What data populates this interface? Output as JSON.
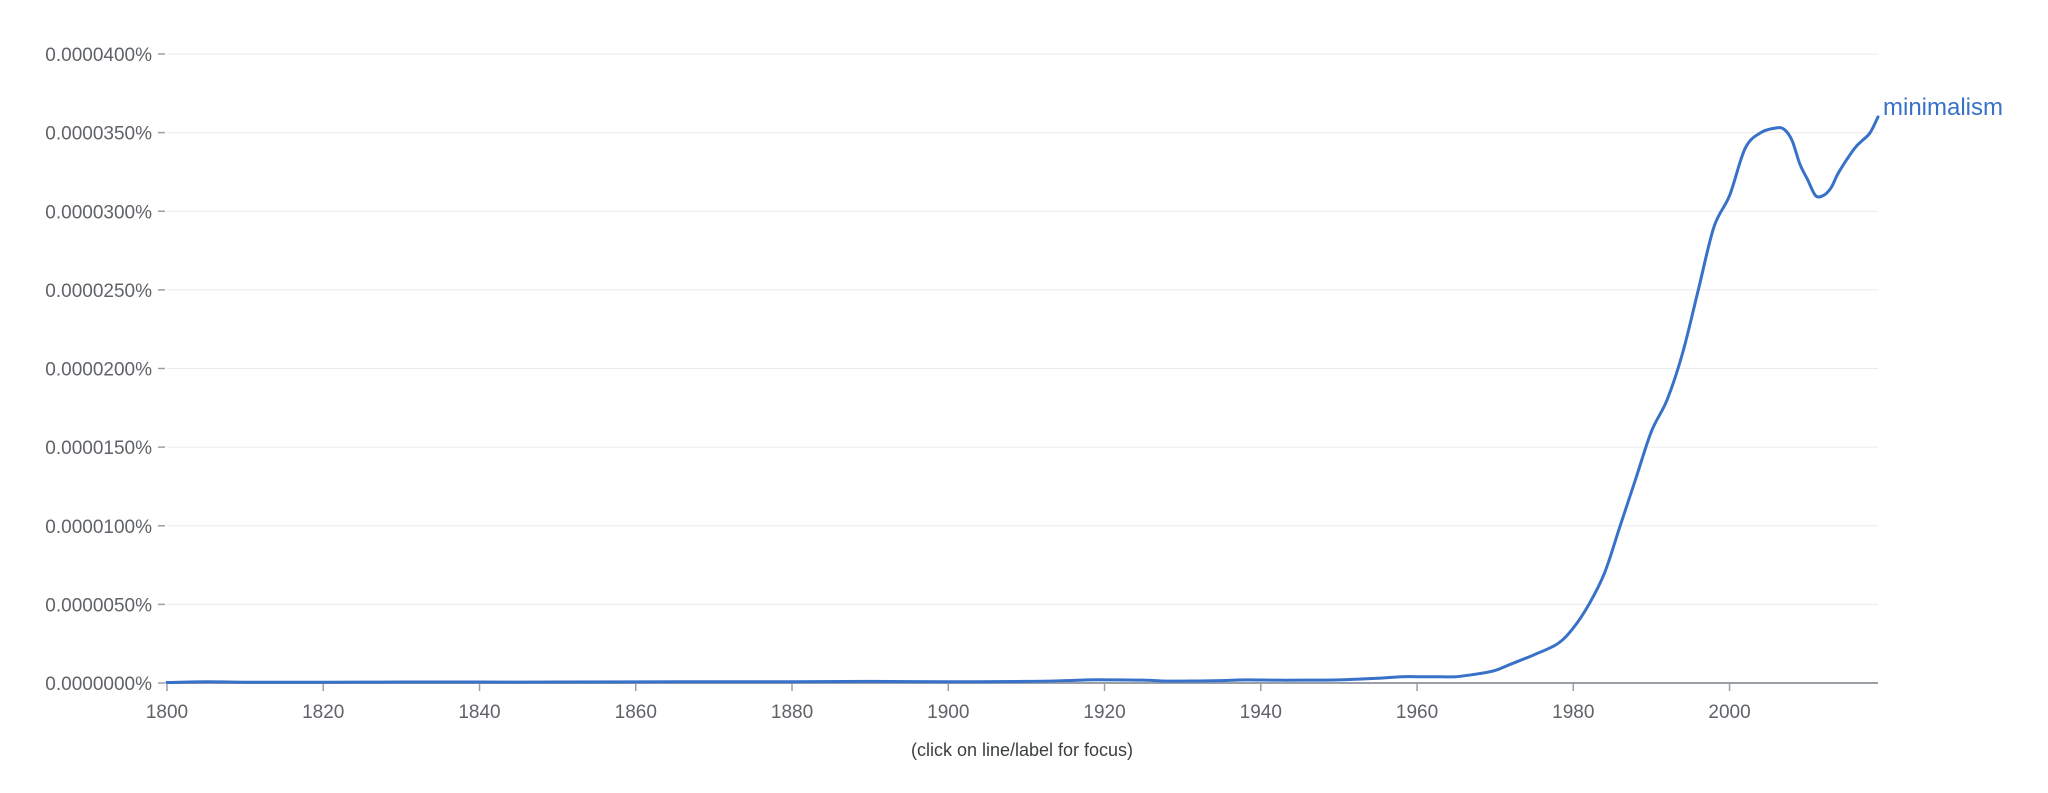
{
  "colors": {
    "series": "#3871c8",
    "grid": "#ebebeb",
    "axis": "#9aa0a6",
    "text": "#5f6368"
  },
  "footnote": "(click on line/label for focus)",
  "chart_data": {
    "type": "line",
    "xlabel": "",
    "ylabel": "",
    "xlim": [
      1800,
      2019
    ],
    "ylim": [
      0,
      4e-07
    ],
    "x_ticks": [
      1800,
      1820,
      1840,
      1860,
      1880,
      1900,
      1920,
      1940,
      1960,
      1980,
      2000
    ],
    "x_tick_labels": [
      "1800",
      "1820",
      "1840",
      "1860",
      "1880",
      "1900",
      "1920",
      "1940",
      "1960",
      "1980",
      "2000"
    ],
    "y_ticks": [
      0,
      5e-08,
      1e-07,
      1.5e-07,
      2e-07,
      2.5e-07,
      3e-07,
      3.5e-07,
      4e-07
    ],
    "y_tick_labels": [
      "0.0000000%",
      "0.0000050%",
      "0.0000100%",
      "0.0000150%",
      "0.0000200%",
      "0.0000250%",
      "0.0000300%",
      "0.0000350%",
      "0.0000400%"
    ],
    "grid": true,
    "legend": "label at line end",
    "series": [
      {
        "name": "minimalism",
        "color": "#3871c8",
        "x": [
          1800,
          1805,
          1810,
          1820,
          1830,
          1840,
          1850,
          1860,
          1870,
          1880,
          1890,
          1900,
          1910,
          1915,
          1918,
          1921,
          1925,
          1928,
          1932,
          1935,
          1938,
          1942,
          1945,
          1950,
          1955,
          1958,
          1960,
          1963,
          1965,
          1968,
          1970,
          1972,
          1975,
          1978,
          1980,
          1982,
          1984,
          1986,
          1988,
          1990,
          1992,
          1994,
          1996,
          1998,
          2000,
          2002,
          2004,
          2006,
          2007,
          2008,
          2009,
          2010,
          2011,
          2012,
          2013,
          2014,
          2016,
          2017,
          2018,
          2019
        ],
        "values": [
          3e-10,
          8e-10,
          5e-10,
          5e-10,
          6e-10,
          6e-10,
          6e-10,
          7e-10,
          8e-10,
          8e-10,
          1e-09,
          8e-10,
          1e-09,
          1.5e-09,
          2e-09,
          2e-09,
          1.8e-09,
          1.2e-09,
          1.3e-09,
          1.5e-09,
          2e-09,
          1.8e-09,
          1.8e-09,
          2e-09,
          3e-09,
          4e-09,
          4e-09,
          4e-09,
          4e-09,
          6e-09,
          8e-09,
          1.2e-08,
          1.8e-08,
          2.5e-08,
          3.5e-08,
          5e-08,
          7e-08,
          1e-07,
          1.3e-07,
          1.6e-07,
          1.8e-07,
          2.1e-07,
          2.5e-07,
          2.9e-07,
          3.1e-07,
          3.4e-07,
          3.5e-07,
          3.53e-07,
          3.52e-07,
          3.45e-07,
          3.3e-07,
          3.2e-07,
          3.1e-07,
          3.1e-07,
          3.15e-07,
          3.25e-07,
          3.4e-07,
          3.45e-07,
          3.5e-07,
          3.6e-07
        ]
      }
    ]
  }
}
